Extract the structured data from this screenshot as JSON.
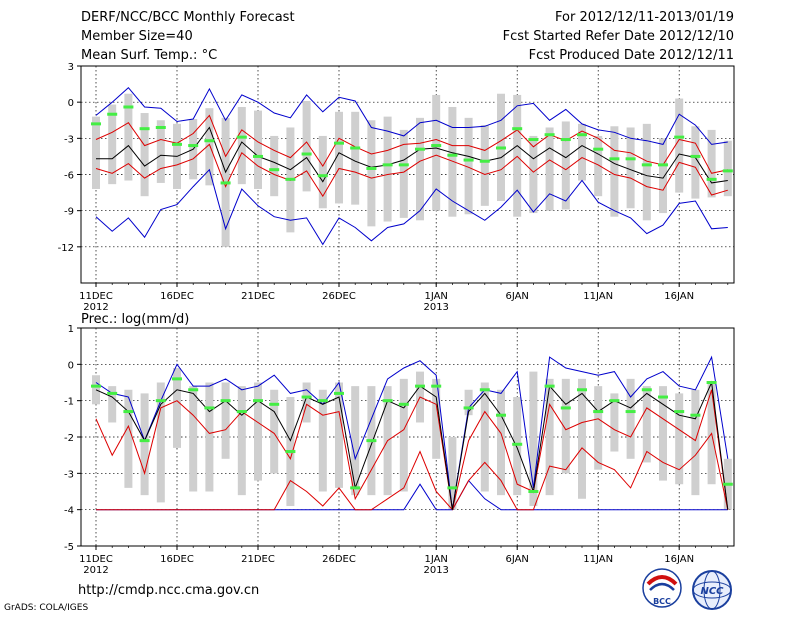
{
  "header": {
    "title": "DERF/NCC/BCC Monthly Forecast",
    "member_size": "Member Size=40",
    "variable": "Mean Surf. Temp.: °C",
    "period": "For 2012/12/11-2013/01/19",
    "started": "Fcst Started Refer Date 2012/12/10",
    "produced": "Fcst Produced Date 2012/12/11"
  },
  "footer": {
    "url": "http://cmdp.ncc.cma.gov.cn",
    "grads": "GrADS: COLA/IGES",
    "logo_bcc": "BCC",
    "logo_ncc": "NCC"
  },
  "colors": {
    "box": "#cfcfcf",
    "mean": "#000000",
    "spread": "#dd0000",
    "extreme": "#0000cc",
    "marker": "#44ee44",
    "grid": "#000000"
  },
  "chart_data": [
    {
      "type": "line",
      "title": "Mean Surf. Temp.: °C",
      "ylim": [
        -15,
        3
      ],
      "yticks": [
        3,
        0,
        -3,
        -6,
        -9,
        -12
      ],
      "xtick_labels": [
        "11DEC",
        "16DEC",
        "21DEC",
        "26DEC",
        "1JAN",
        "6JAN",
        "11JAN",
        "16JAN"
      ],
      "xtick_sublabels": {
        "0": "2012",
        "4": "2013"
      },
      "xtick_days": [
        1,
        6,
        11,
        16,
        22,
        27,
        32,
        37
      ],
      "days": [
        1,
        2,
        3,
        4,
        5,
        6,
        7,
        8,
        9,
        10,
        11,
        12,
        13,
        14,
        15,
        16,
        17,
        18,
        19,
        20,
        21,
        22,
        23,
        24,
        25,
        26,
        27,
        28,
        29,
        30,
        31,
        32,
        33,
        34,
        35,
        36,
        37,
        38,
        39,
        40
      ],
      "series": [
        {
          "name": "max",
          "values": [
            -9.5,
            -10.7,
            -9.6,
            -11.2,
            -8.9,
            -8.5,
            -7,
            -5.6,
            -10.5,
            -7.2,
            -8.6,
            -9.5,
            -9.8,
            -9.6,
            -11.8,
            -9.6,
            -10.4,
            -11.5,
            -10.4,
            -10.1,
            -9,
            -7.2,
            -8.2,
            -9,
            -9.8,
            -8.7,
            -7.3,
            -9.1,
            -7.6,
            -8.2,
            -6.5,
            -8.3,
            -9,
            -9.6,
            -10.9,
            -10.2,
            -8.4,
            -8.2,
            -10.5,
            -10.4
          ]
        },
        {
          "name": "p10",
          "values": [
            -5.5,
            -5.9,
            -5.1,
            -6.3,
            -5.5,
            -5.2,
            -4.7,
            -3.5,
            -7,
            -4.2,
            -5.3,
            -6,
            -6.5,
            -5.7,
            -7.8,
            -5.5,
            -5.8,
            -6.3,
            -6,
            -5.8,
            -4.9,
            -4.4,
            -4.9,
            -5.4,
            -6,
            -5.6,
            -4.5,
            -5.8,
            -4.8,
            -5.6,
            -4.6,
            -5.2,
            -6,
            -6.3,
            -7,
            -7.3,
            -5,
            -5.4,
            -7.7,
            -7.3
          ]
        },
        {
          "name": "mean",
          "values": [
            -4.7,
            -4.7,
            -3.6,
            -5.3,
            -4.4,
            -4.5,
            -3.9,
            -2.1,
            -5.8,
            -3.3,
            -4.5,
            -5,
            -5.6,
            -4.6,
            -6.6,
            -4.2,
            -4.9,
            -5.4,
            -5.2,
            -4.8,
            -3.9,
            -3.8,
            -4.2,
            -4.5,
            -4.9,
            -4.6,
            -3.6,
            -4.7,
            -3.8,
            -4.6,
            -3.6,
            -4.3,
            -5.1,
            -5.6,
            -6.1,
            -6.3,
            -4.3,
            -4.6,
            -6.7,
            -6.5
          ]
        },
        {
          "name": "p90",
          "values": [
            -3.1,
            -2.5,
            -1.7,
            -3.6,
            -3.1,
            -3.4,
            -2.6,
            -1.1,
            -4.5,
            -2.3,
            -3.3,
            -4,
            -4.6,
            -3.3,
            -5.3,
            -3,
            -3.7,
            -4.3,
            -4,
            -3.5,
            -3.4,
            -3.1,
            -3.6,
            -3.6,
            -4,
            -3.2,
            -2.3,
            -3.7,
            -2.7,
            -3.2,
            -2.4,
            -3,
            -4,
            -4.2,
            -4.9,
            -5.2,
            -3.1,
            -3.4,
            -5.9,
            -5.6
          ]
        },
        {
          "name": "min",
          "values": [
            -1.1,
            0,
            1.2,
            -0.4,
            -0.5,
            -1.6,
            -1.4,
            1.1,
            -1.5,
            0.6,
            0,
            -0.9,
            -1.3,
            0.6,
            -0.8,
            0.4,
            0.1,
            -2.1,
            -2.4,
            -2.8,
            -1.7,
            -1.5,
            -2.1,
            -2.1,
            -2,
            -1.5,
            -0.3,
            -0.1,
            -1.5,
            -0.6,
            -1.8,
            -2.3,
            -2.5,
            -3,
            -3.2,
            -3.5,
            -1,
            -1.9,
            -3.5,
            -3.3
          ]
        },
        {
          "name": "box_low",
          "values": [
            -7.2,
            -6.8,
            -6.5,
            -7.8,
            -6.7,
            -7.2,
            -6.4,
            -6.9,
            -12.0,
            -6.8,
            -7.2,
            -7.8,
            -10.8,
            -7.4,
            -8.8,
            -8.4,
            -8.5,
            -10.3,
            -9.9,
            -9.6,
            -9.8,
            -9.0,
            -9.5,
            -9.3,
            -8.6,
            -8.2,
            -9.5,
            -9.2,
            -9.0,
            -8.9,
            -6.5,
            -7.8,
            -9.5,
            -8.8,
            -9.8,
            -9.2,
            -7.5,
            -8.0,
            -7.9,
            -7.8
          ]
        },
        {
          "name": "box_high",
          "values": [
            -1.2,
            -0.2,
            0.7,
            -0.9,
            -1.5,
            -1.8,
            -1.4,
            -0.5,
            -1.3,
            -0.4,
            -0.7,
            -2.8,
            -2.1,
            0.1,
            -2.8,
            -0.8,
            -0.8,
            -1.5,
            -1.2,
            -2.3,
            -1.3,
            0.6,
            -0.4,
            -1.3,
            -1.9,
            0.7,
            0.6,
            -2.8,
            -2.1,
            -1.6,
            -1.8,
            -2.8,
            -2.0,
            -2.1,
            -1.8,
            -3.0,
            0.3,
            -2.0,
            -2.3,
            -3.2
          ]
        },
        {
          "name": "marker",
          "values": [
            -1.8,
            -1,
            -0.4,
            -2.2,
            -2.1,
            -3.5,
            -3.6,
            -3.2,
            -6.7,
            -2.9,
            -4.5,
            -5.6,
            -6.4,
            -4.3,
            -6.1,
            -3.4,
            -3.8,
            -5.5,
            -5.2,
            -5.2,
            -3.9,
            -3.6,
            -4.4,
            -4.8,
            -4.9,
            -3.8,
            -2.2,
            -3.1,
            -2.7,
            -3.1,
            -2.7,
            -3.9,
            -4.7,
            -4.7,
            -5.2,
            -5.2,
            -2.9,
            -4.5,
            -6.4,
            -5.7
          ]
        }
      ]
    },
    {
      "type": "line",
      "title": "Prec.: log(mm/d)",
      "ylim": [
        -5,
        1
      ],
      "yticks": [
        1,
        0,
        -1,
        -2,
        -3,
        -4,
        -5
      ],
      "xtick_labels": [
        "11DEC",
        "16DEC",
        "21DEC",
        "26DEC",
        "1JAN",
        "6JAN",
        "11JAN",
        "16JAN"
      ],
      "xtick_sublabels": {
        "0": "2012",
        "4": "2013"
      },
      "xtick_days": [
        1,
        6,
        11,
        16,
        22,
        27,
        32,
        37
      ],
      "days": [
        1,
        2,
        3,
        4,
        5,
        6,
        7,
        8,
        9,
        10,
        11,
        12,
        13,
        14,
        15,
        16,
        17,
        18,
        19,
        20,
        21,
        22,
        23,
        24,
        25,
        26,
        27,
        28,
        29,
        30,
        31,
        32,
        33,
        34,
        35,
        36,
        37,
        38,
        39,
        40
      ],
      "series": [
        {
          "name": "max",
          "values": [
            -0.5,
            -0.8,
            -0.9,
            -2.1,
            -1,
            0,
            -0.6,
            -0.6,
            -0.4,
            -0.7,
            -0.6,
            -0.3,
            -0.8,
            -0.7,
            -1.1,
            -0.5,
            -2.6,
            -1.5,
            -0.4,
            -0.1,
            0.1,
            -0.3,
            -4.0,
            -1.2,
            -0.7,
            -0.8,
            -0.2,
            -3.4,
            0.2,
            -0.1,
            -0.2,
            -0.3,
            -0.2,
            -0.9,
            -0.4,
            -0.2,
            -0.6,
            -0.7,
            0.2,
            -2.6
          ]
        },
        {
          "name": "mean",
          "values": [
            -0.7,
            -0.9,
            -1.3,
            -2.1,
            -1.1,
            -0.7,
            -0.8,
            -1.3,
            -1,
            -1.4,
            -1,
            -1.3,
            -2.1,
            -0.9,
            -1.1,
            -0.9,
            -3.4,
            -2.2,
            -1,
            -1.2,
            -0.6,
            -0.9,
            -4,
            -1.3,
            -0.8,
            -1.4,
            -2.3,
            -3.5,
            -0.6,
            -1.1,
            -0.8,
            -1.3,
            -1,
            -1.2,
            -0.8,
            -1.1,
            -1.4,
            -1.5,
            -0.5,
            -4
          ]
        },
        {
          "name": "p90",
          "values": [
            -1.5,
            -2.5,
            -1.7,
            -3,
            -1.2,
            -1,
            -1.4,
            -1.9,
            -1.8,
            -1.3,
            -1.6,
            -1.9,
            -2.6,
            -1.1,
            -1.4,
            -1.3,
            -3.7,
            -2.9,
            -2.1,
            -1.8,
            -0.9,
            -1.1,
            -4.0,
            -2.1,
            -1.3,
            -1.9,
            -3.3,
            -3.5,
            -1.1,
            -1.8,
            -1.6,
            -1.5,
            -1.8,
            -2,
            -1.2,
            -1.5,
            -1.8,
            -2.1,
            -0.7,
            -4.0
          ]
        },
        {
          "name": "p10",
          "values": [
            -4,
            -4,
            -4,
            -4,
            -4,
            -4,
            -4,
            -4,
            -4,
            -4,
            -4,
            -4,
            -3.2,
            -3.5,
            -3.9,
            -3.4,
            -4,
            -4,
            -3.7,
            -3.4,
            -2.4,
            -3.5,
            -4,
            -3.2,
            -2.7,
            -3.2,
            -4,
            -4,
            -2.8,
            -2.9,
            -2.3,
            -2.7,
            -2.9,
            -3.4,
            -2.4,
            -2.7,
            -2.9,
            -2.5,
            -1.9,
            -4
          ]
        },
        {
          "name": "min",
          "values": [
            -4,
            -4,
            -4,
            -4,
            -4,
            -4,
            -4,
            -4,
            -4,
            -4,
            -4,
            -4,
            -4,
            -4,
            -4,
            -4,
            -4,
            -4,
            -4,
            -4,
            -3.3,
            -4,
            -4,
            -3.2,
            -3.7,
            -4,
            -4,
            -4,
            -4,
            -4,
            -4,
            -4,
            -4,
            -4,
            -4,
            -4,
            -4,
            -4,
            -4,
            -4
          ]
        },
        {
          "name": "box_low",
          "values": [
            -1.1,
            -1.6,
            -3.4,
            -3.6,
            -3.8,
            -2.3,
            -3.5,
            -3.5,
            -2.6,
            -3.6,
            -3.2,
            -3.0,
            -3.9,
            -1.6,
            -3.5,
            -3.4,
            -3.6,
            -3.6,
            -3.6,
            -3.5,
            -1.6,
            -2.6,
            -4.0,
            -1.4,
            -3.5,
            -3.6,
            -3.6,
            -3.9,
            -3.6,
            -3.0,
            -3.7,
            -2.9,
            -2.4,
            -2.6,
            -2.7,
            -3.2,
            -3.3,
            -3.6,
            -3.3,
            -4.0
          ]
        },
        {
          "name": "box_high",
          "values": [
            -0.3,
            -0.6,
            -0.7,
            -0.8,
            -0.5,
            -0.1,
            -0.6,
            -0.5,
            -0.5,
            -0.6,
            -0.5,
            -0.7,
            -0.9,
            -0.5,
            -0.7,
            -0.5,
            -0.6,
            -0.6,
            -0.6,
            -0.4,
            -0.2,
            -0.4,
            -2.0,
            -0.7,
            -0.5,
            -0.7,
            -0.9,
            -0.2,
            -0.4,
            -0.4,
            -0.4,
            -0.6,
            -0.8,
            -0.4,
            -0.6,
            -0.6,
            -0.8,
            -0.7,
            -0.5,
            -2.6
          ]
        },
        {
          "name": "marker",
          "values": [
            -0.6,
            -0.8,
            -1.3,
            -2.1,
            -1,
            -0.4,
            -0.7,
            -1.2,
            -1,
            -1.3,
            -1,
            -1.1,
            -2.4,
            -0.9,
            -1,
            -0.8,
            -3.4,
            -2.1,
            -1,
            -1.1,
            -0.6,
            -0.6,
            -3.4,
            -1.2,
            -0.7,
            -1.4,
            -2.2,
            -3.5,
            -0.6,
            -1.2,
            -0.7,
            -1.3,
            -1,
            -1.3,
            -0.7,
            -0.9,
            -1.3,
            -1.4,
            -0.5,
            -3.3
          ]
        }
      ]
    }
  ]
}
